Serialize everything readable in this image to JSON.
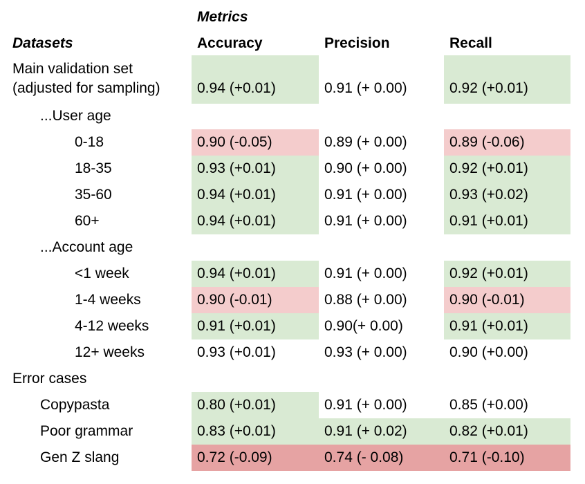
{
  "header": {
    "metrics_label": "Metrics",
    "datasets_label": "Datasets",
    "columns": [
      "Accuracy",
      "Precision",
      "Recall"
    ]
  },
  "main": {
    "label_line1": "Main validation set",
    "label_line2": "(adjusted for sampling)",
    "values": [
      "0.94 (+0.01)",
      "0.91 (+ 0.00)",
      "0.92 (+0.01)"
    ]
  },
  "sections": {
    "user_age": "...User age",
    "account_age": "...Account age",
    "error_cases": "Error cases"
  },
  "rows": [
    {
      "label": "0-18",
      "values": [
        "0.90 (-0.05)",
        "0.89 (+ 0.00)",
        "0.89 (-0.06)"
      ]
    },
    {
      "label": "18-35",
      "values": [
        "0.93 (+0.01)",
        "0.90 (+ 0.00)",
        "0.92 (+0.01)"
      ]
    },
    {
      "label": "35-60",
      "values": [
        "0.94 (+0.01)",
        "0.91 (+ 0.00)",
        "0.93 (+0.02)"
      ]
    },
    {
      "label": "60+",
      "values": [
        "0.94 (+0.01)",
        "0.91 (+ 0.00)",
        "0.91 (+0.01)"
      ]
    },
    {
      "label": "<1 week",
      "values": [
        "0.94 (+0.01)",
        "0.91 (+ 0.00)",
        "0.92 (+0.01)"
      ]
    },
    {
      "label": "1-4 weeks",
      "values": [
        "0.90 (-0.01)",
        "0.88 (+ 0.00)",
        "0.90 (-0.01)"
      ]
    },
    {
      "label": "4-12 weeks",
      "values": [
        "0.91 (+0.01)",
        "0.90(+ 0.00)",
        "0.91 (+0.01)"
      ]
    },
    {
      "label": "12+ weeks",
      "values": [
        "0.93 (+0.01)",
        "0.93 (+ 0.00)",
        "0.90 (+0.00)"
      ]
    },
    {
      "label": "Copypasta",
      "values": [
        "0.80 (+0.01)",
        "0.91 (+ 0.00)",
        "0.85 (+0.00)"
      ]
    },
    {
      "label": "Poor grammar",
      "values": [
        "0.83 (+0.01)",
        "0.91 (+ 0.02)",
        "0.82 (+0.01)"
      ]
    },
    {
      "label": "Gen Z slang",
      "values": [
        "0.72 (-0.09)",
        "0.74 (- 0.08)",
        "0.71 (-0.10)"
      ]
    }
  ],
  "colors": {
    "improved": "#d9ead3",
    "degraded_slight": "#f4cccc",
    "degraded_severe": "#e6a3a3"
  }
}
